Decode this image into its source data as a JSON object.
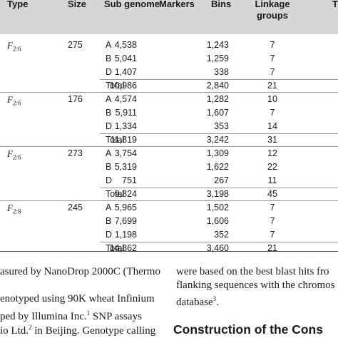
{
  "table": {
    "headers": {
      "type": "Type",
      "size": "Size",
      "sub_genome": "Sub genome",
      "markers": "Markers",
      "bins": "Bins",
      "linkage": "Linkage groups",
      "last": "T"
    },
    "groups": [
      {
        "type_main": "F",
        "type_sub": "2:6",
        "size": "275",
        "rows": [
          {
            "sub": "A",
            "markers": "4,538",
            "bins": "1,243",
            "linkage": "7"
          },
          {
            "sub": "B",
            "markers": "5,041",
            "bins": "1,259",
            "linkage": "7"
          },
          {
            "sub": "D",
            "markers": "1,407",
            "bins": "338",
            "linkage": "7"
          },
          {
            "sub": "Total",
            "markers": "10,986",
            "bins": "2,840",
            "linkage": "21"
          }
        ]
      },
      {
        "type_main": "F",
        "type_sub": "2:6",
        "size": "176",
        "rows": [
          {
            "sub": "A",
            "markers": "4,574",
            "bins": "1,282",
            "linkage": "10"
          },
          {
            "sub": "B",
            "markers": "5,911",
            "bins": "1,607",
            "linkage": "7"
          },
          {
            "sub": "D",
            "markers": "1,334",
            "bins": "353",
            "linkage": "14"
          },
          {
            "sub": "Total",
            "markers": "11,819",
            "bins": "3,242",
            "linkage": "31"
          }
        ]
      },
      {
        "type_main": "F",
        "type_sub": "2:6",
        "size": "273",
        "rows": [
          {
            "sub": "A",
            "markers": "3,754",
            "bins": "1,309",
            "linkage": "12"
          },
          {
            "sub": "B",
            "markers": "5,319",
            "bins": "1,622",
            "linkage": "22"
          },
          {
            "sub": "D",
            "markers": "751",
            "bins": "267",
            "linkage": "11"
          },
          {
            "sub": "Total",
            "markers": "9,824",
            "bins": "3,198",
            "linkage": "45"
          }
        ]
      },
      {
        "type_main": "F",
        "type_sub": "2:8",
        "size": "245",
        "rows": [
          {
            "sub": "A",
            "markers": "5,965",
            "bins": "1,502",
            "linkage": "7"
          },
          {
            "sub": "B",
            "markers": "7,699",
            "bins": "1,606",
            "linkage": "7"
          },
          {
            "sub": "D",
            "markers": "1,198",
            "bins": "352",
            "linkage": "7"
          },
          {
            "sub": "Total",
            "markers": "14,862",
            "bins": "3,460",
            "linkage": "21"
          }
        ]
      }
    ]
  },
  "left_column": {
    "line1": "asured by NanoDrop 2000C (Thermo",
    "line2": "enotyped using 90K wheat Infinium",
    "line3": "ped by Illumina Inc.",
    "line3_sup": "1",
    "line3_rest": " SNP assays",
    "line4": "io Ltd.",
    "line4_sup": "2",
    "line4_rest": " in Beijing. Genotype calling"
  },
  "right_column": {
    "line1": "were based on the best blast hits fro",
    "line2": "flanking sequences with the chromos",
    "line3": "database",
    "line3_sup": "3",
    "line3_rest": ".",
    "section_heading": "Construction of the Cons"
  }
}
